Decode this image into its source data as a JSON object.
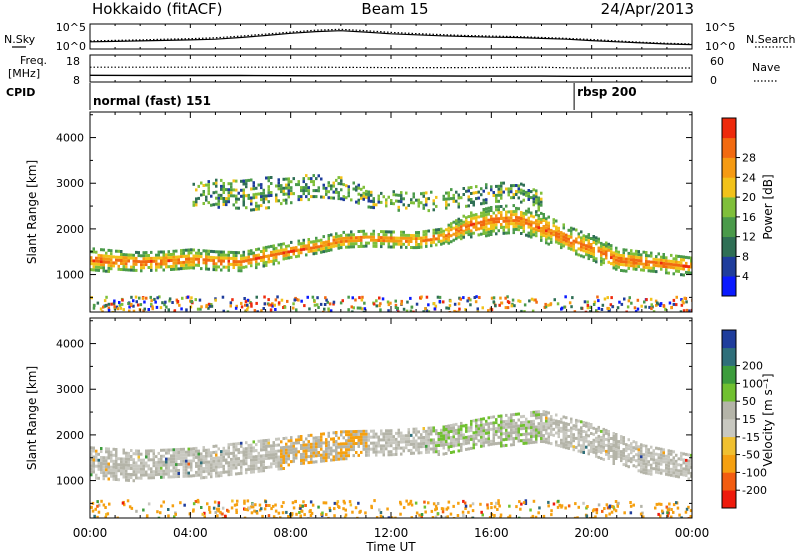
{
  "header": {
    "station": "Hokkaido (fitACF)",
    "beam": "Beam 15",
    "date": "24/Apr/2013"
  },
  "colors": {
    "power_scale": [
      "#0a1aff",
      "#1f3d9c",
      "#2f6f55",
      "#4a9a4a",
      "#7fbf3a",
      "#f2c21a",
      "#f59a12",
      "#f26a10",
      "#ee2a0c"
    ],
    "velocity_scale": [
      "#ee1a0c",
      "#f25c10",
      "#f5a010",
      "#f0c030",
      "#c8c8c0",
      "#b4b4a8",
      "#70c030",
      "#3c9c3c",
      "#2f6f7a",
      "#1f3d9c"
    ]
  },
  "chart_data": [
    {
      "type": "line",
      "panel": "noise",
      "left_label": "N.Sky",
      "right_label": "N.Search",
      "left_ticks": [
        "10^5",
        "10^0"
      ],
      "right_ticks": [
        "10^5",
        "10^0"
      ],
      "xlim": [
        0,
        24
      ],
      "series": [
        {
          "name": "N.Sky",
          "style": "solid",
          "x": [
            0,
            1,
            2,
            3,
            4,
            5,
            6,
            7,
            8,
            9,
            10,
            11,
            12,
            13,
            14,
            15,
            16,
            17,
            18,
            19,
            20,
            21,
            22,
            23,
            24
          ],
          "y": [
            0.25,
            0.27,
            0.3,
            0.33,
            0.36,
            0.4,
            0.5,
            0.62,
            0.75,
            0.85,
            0.9,
            0.82,
            0.72,
            0.66,
            0.6,
            0.56,
            0.52,
            0.5,
            0.45,
            0.4,
            0.32,
            0.25,
            0.18,
            0.12,
            0.08
          ]
        },
        {
          "name": "N.Search",
          "style": "dotted",
          "x": [
            0,
            1,
            2,
            3,
            4,
            5,
            6,
            7,
            8,
            9,
            10,
            11,
            12,
            13,
            14,
            15,
            16,
            17,
            18,
            19,
            20,
            21,
            22,
            23,
            24
          ],
          "y": [
            0.3,
            0.33,
            0.36,
            0.4,
            0.43,
            0.48,
            0.58,
            0.7,
            0.82,
            0.93,
            0.98,
            0.9,
            0.8,
            0.73,
            0.67,
            0.62,
            0.58,
            0.55,
            0.5,
            0.45,
            0.38,
            0.3,
            0.22,
            0.16,
            0.12
          ]
        }
      ]
    },
    {
      "type": "line",
      "panel": "frequency",
      "left_label": "Freq.",
      "left_unit": "[MHz]",
      "right_label": "Nave",
      "left_ticks": [
        "18",
        "8"
      ],
      "right_ticks": [
        "60",
        "0"
      ],
      "xlim": [
        0,
        24
      ],
      "series": [
        {
          "name": "Freq.",
          "style": "solid",
          "x": [
            0,
            3,
            6,
            9,
            12,
            15,
            18,
            19.3,
            21,
            24
          ],
          "y": [
            10.5,
            10.4,
            10.4,
            10.3,
            10.3,
            10.2,
            10.2,
            10.1,
            10.1,
            10.1
          ]
        },
        {
          "name": "Nave",
          "style": "dotted",
          "x": [
            0,
            3,
            6,
            9,
            12,
            15,
            18,
            19.3,
            21,
            24
          ],
          "y": [
            33,
            33,
            33,
            33,
            32,
            32,
            33,
            31,
            31,
            31
          ]
        }
      ]
    },
    {
      "type": "table",
      "panel": "cpid",
      "label": "CPID",
      "segments": [
        {
          "start": 0,
          "end": 19.3,
          "text": "normal (fast) 151"
        },
        {
          "start": 19.3,
          "end": 24,
          "text": "rbsp 200"
        }
      ]
    },
    {
      "type": "heatmap",
      "panel": "power",
      "ylabel": "Slant Range [km]",
      "yticks": [
        1000,
        2000,
        3000,
        4000
      ],
      "ylim": [
        180,
        4560
      ],
      "xlim": [
        0,
        24
      ],
      "colorbar": {
        "label": "Power [dB]",
        "ticks": [
          "4",
          "8",
          "12",
          "16",
          "20",
          "24",
          "28"
        ]
      },
      "bands": [
        {
          "name": "main_echo",
          "t": [
            0,
            1,
            2,
            3,
            4,
            5,
            6,
            7,
            8,
            9,
            10,
            11,
            12,
            13,
            14,
            15,
            16,
            17,
            18,
            19,
            20,
            21,
            22,
            23,
            24
          ],
          "center": [
            1350,
            1320,
            1300,
            1320,
            1350,
            1320,
            1300,
            1420,
            1550,
            1650,
            1780,
            1820,
            1800,
            1780,
            1850,
            2100,
            2200,
            2250,
            2050,
            1800,
            1600,
            1350,
            1300,
            1250,
            1200
          ],
          "width": [
            500,
            450,
            420,
            420,
            450,
            420,
            420,
            420,
            380,
            360,
            350,
            330,
            330,
            340,
            360,
            520,
            620,
            600,
            620,
            550,
            550,
            480,
            450,
            420,
            380
          ]
        },
        {
          "name": "upper_echo",
          "t": [
            4,
            5,
            6,
            7,
            8,
            9,
            10,
            11,
            12,
            13,
            14,
            15,
            16,
            17,
            18
          ],
          "center": [
            2750,
            2800,
            2750,
            2800,
            2900,
            2950,
            2900,
            2700,
            2650,
            2600,
            2650,
            2700,
            2800,
            2850,
            2600
          ],
          "width": [
            500,
            600,
            650,
            700,
            600,
            500,
            500,
            420,
            400,
            380,
            450,
            450,
            450,
            400,
            400
          ]
        }
      ]
    },
    {
      "type": "heatmap",
      "panel": "velocity",
      "ylabel": "Slant Range [km]",
      "yticks": [
        1000,
        2000,
        3000,
        4000
      ],
      "ylim": [
        180,
        4560
      ],
      "xlim": [
        0,
        24
      ],
      "xlabel": "Time UT",
      "xticks": [
        "00:00",
        "04:00",
        "08:00",
        "12:00",
        "16:00",
        "20:00",
        "00:00"
      ],
      "colorbar": {
        "label": "Velocity [m s⁻¹]",
        "ticks": [
          "200",
          "100",
          "50",
          "15",
          "-15",
          "-50",
          "-100",
          "-200"
        ]
      },
      "bands": [
        {
          "name": "main_echo",
          "t": [
            0,
            2,
            4,
            6,
            8,
            10,
            12,
            14,
            16,
            18,
            20,
            22,
            24
          ],
          "center": [
            1400,
            1350,
            1400,
            1500,
            1650,
            1800,
            1850,
            1900,
            2100,
            2200,
            1900,
            1500,
            1300
          ],
          "width": [
            700,
            650,
            650,
            700,
            650,
            600,
            550,
            600,
            650,
            700,
            700,
            600,
            550
          ]
        }
      ]
    }
  ]
}
